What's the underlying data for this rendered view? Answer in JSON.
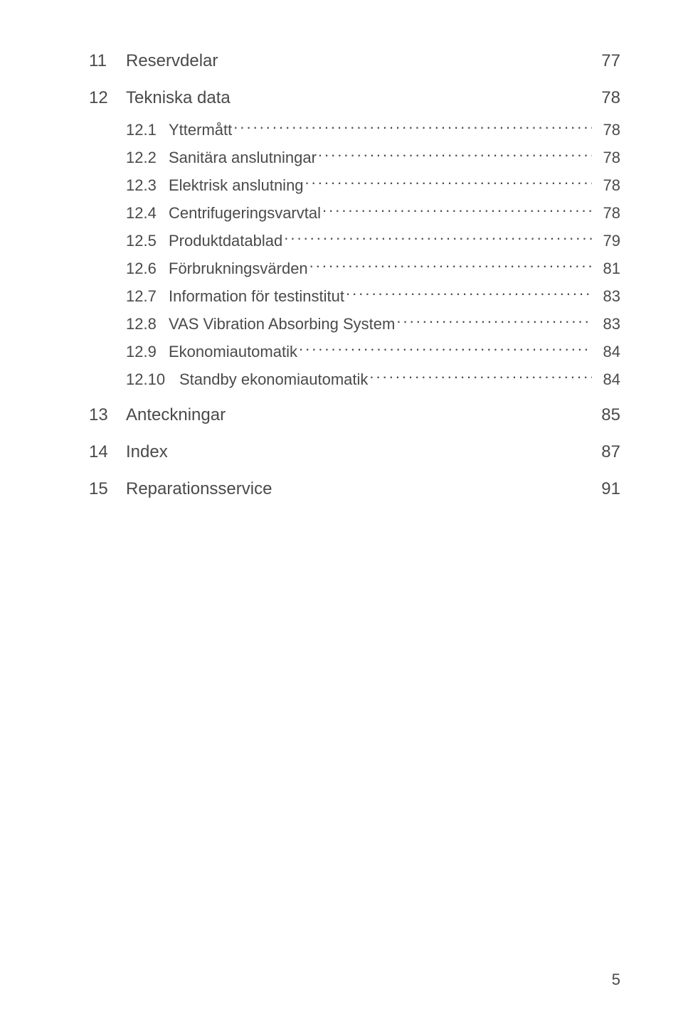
{
  "text_color": "#4a4a4a",
  "background_color": "#ffffff",
  "body_fontsize": 22,
  "chapter_fontsize": 24,
  "footer_page_number": "5",
  "chapters": [
    {
      "num": "11",
      "title": "Reservdelar",
      "page": "77",
      "subs": []
    },
    {
      "num": "12",
      "title": "Tekniska data",
      "page": "78",
      "subs": [
        {
          "num": "12.1",
          "title": "Yttermått",
          "page": "78"
        },
        {
          "num": "12.2",
          "title": "Sanitära anslutningar",
          "page": "78"
        },
        {
          "num": "12.3",
          "title": "Elektrisk anslutning",
          "page": "78"
        },
        {
          "num": "12.4",
          "title": "Centrifugeringsvarvtal",
          "page": "78"
        },
        {
          "num": "12.5",
          "title": "Produktdatablad",
          "page": "79"
        },
        {
          "num": "12.6",
          "title": "Förbrukningsvärden",
          "page": "81"
        },
        {
          "num": "12.7",
          "title": "Information för testinstitut",
          "page": "83"
        },
        {
          "num": "12.8",
          "title": "VAS Vibration Absorbing System",
          "page": "83"
        },
        {
          "num": "12.9",
          "title": "Ekonomiautomatik",
          "page": "84"
        },
        {
          "num": "12.10",
          "title": "Standby ekonomiautomatik",
          "page": "84",
          "wide_num": true
        }
      ]
    },
    {
      "num": "13",
      "title": "Anteckningar",
      "page": "85",
      "subs": []
    },
    {
      "num": "14",
      "title": "Index",
      "page": "87",
      "subs": []
    },
    {
      "num": "15",
      "title": "Reparationsservice",
      "page": "91",
      "subs": []
    }
  ]
}
